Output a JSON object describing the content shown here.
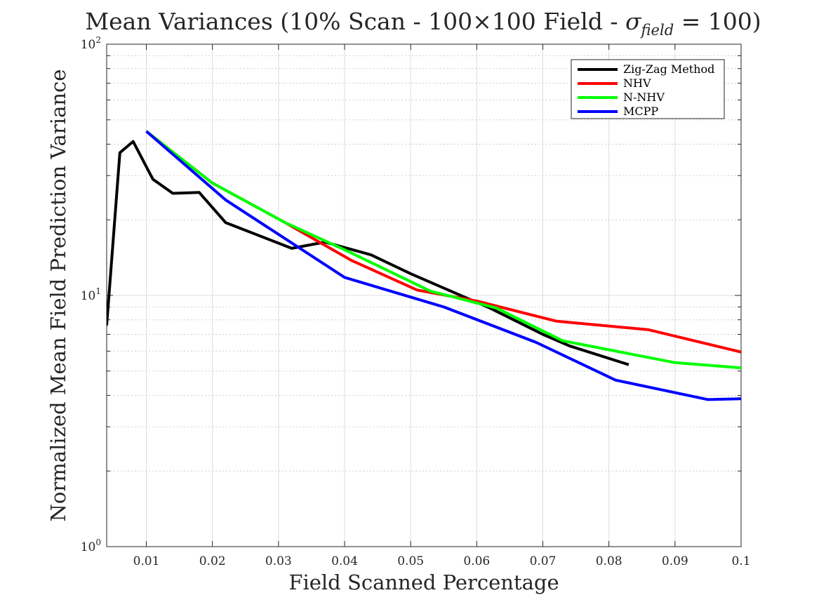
{
  "chart_data": {
    "type": "line",
    "title_parts": {
      "main": "Mean Variances (10% Scan - 100×100 Field - ",
      "sigma": "σ",
      "subscript": "field",
      "tail": " = 100)"
    },
    "xlabel": "Field Scanned Percentage",
    "ylabel": "Normalized Mean Field Prediction Variance",
    "xlim": [
      0.004,
      0.1
    ],
    "ylim": [
      1,
      100
    ],
    "yscale": "log",
    "grid": true,
    "legend_location": "top-right",
    "x_ticks": [
      {
        "value": 0.01,
        "label": "0.01"
      },
      {
        "value": 0.02,
        "label": "0.02"
      },
      {
        "value": 0.03,
        "label": "0.03"
      },
      {
        "value": 0.04,
        "label": "0.04"
      },
      {
        "value": 0.05,
        "label": "0.05"
      },
      {
        "value": 0.06,
        "label": "0.06"
      },
      {
        "value": 0.07,
        "label": "0.07"
      },
      {
        "value": 0.08,
        "label": "0.08"
      },
      {
        "value": 0.09,
        "label": "0.09"
      },
      {
        "value": 0.1,
        "label": "0.1"
      }
    ],
    "y_ticks": [
      {
        "value": 1,
        "base": "10",
        "exp": "0"
      },
      {
        "value": 10,
        "base": "10",
        "exp": "1"
      },
      {
        "value": 100,
        "base": "10",
        "exp": "2"
      }
    ],
    "series": [
      {
        "name": "Zig-Zag Method",
        "color": "#000000",
        "points": [
          [
            0.004,
            7.6
          ],
          [
            0.006,
            37
          ],
          [
            0.008,
            41
          ],
          [
            0.011,
            29
          ],
          [
            0.014,
            25.5
          ],
          [
            0.018,
            25.7
          ],
          [
            0.022,
            19.5
          ],
          [
            0.032,
            15.4
          ],
          [
            0.037,
            16.3
          ],
          [
            0.044,
            14.5
          ],
          [
            0.05,
            12.2
          ],
          [
            0.062,
            8.9
          ],
          [
            0.07,
            7.0
          ],
          [
            0.074,
            6.3
          ],
          [
            0.083,
            5.3
          ]
        ]
      },
      {
        "name": "NHV",
        "color": "#ff0000",
        "points": [
          [
            0.01,
            45
          ],
          [
            0.02,
            28
          ],
          [
            0.031,
            19.5
          ],
          [
            0.041,
            13.8
          ],
          [
            0.051,
            10.5
          ],
          [
            0.06,
            9.5
          ],
          [
            0.072,
            7.9
          ],
          [
            0.086,
            7.3
          ],
          [
            0.1,
            5.95
          ]
        ]
      },
      {
        "name": "N-NHV",
        "color": "#00ff00",
        "points": [
          [
            0.01,
            45
          ],
          [
            0.02,
            28
          ],
          [
            0.031,
            19.5
          ],
          [
            0.04,
            15.2
          ],
          [
            0.053,
            10.4
          ],
          [
            0.063,
            8.9
          ],
          [
            0.073,
            6.6
          ],
          [
            0.09,
            5.4
          ],
          [
            0.1,
            5.15
          ]
        ]
      },
      {
        "name": "MCPP",
        "color": "#0000ff",
        "points": [
          [
            0.01,
            45
          ],
          [
            0.022,
            24
          ],
          [
            0.04,
            11.8
          ],
          [
            0.055,
            9.0
          ],
          [
            0.069,
            6.5
          ],
          [
            0.081,
            4.6
          ],
          [
            0.095,
            3.85
          ],
          [
            0.1,
            3.88
          ]
        ]
      }
    ]
  }
}
